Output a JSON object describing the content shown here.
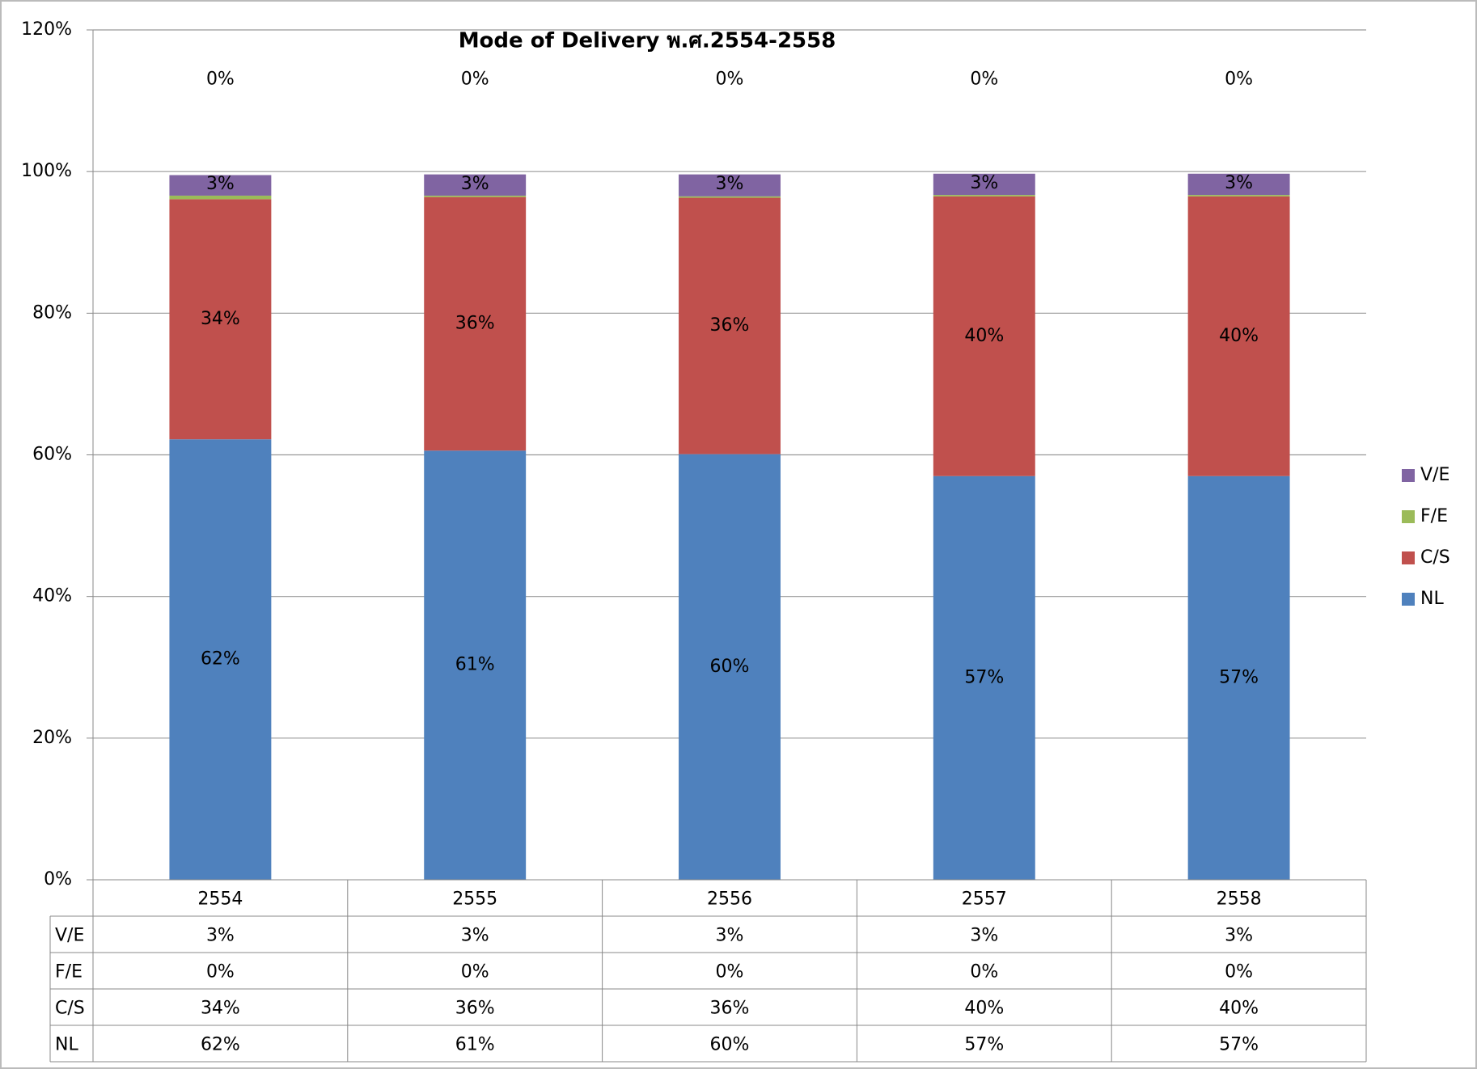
{
  "chart_data": {
    "type": "bar",
    "stacked": true,
    "title": "Mode of Delivery  พ.ศ.2554-2558",
    "categories": [
      "2554",
      "2555",
      "2556",
      "2557",
      "2558"
    ],
    "series": [
      {
        "name": "NL",
        "color": "#4f81bd",
        "values": [
          62.2,
          60.6,
          60.1,
          57.0,
          57.0
        ],
        "value_labels": [
          "62%",
          "61%",
          "60%",
          "57%",
          "57%"
        ]
      },
      {
        "name": "C/S",
        "color": "#c0504d",
        "values": [
          33.9,
          35.8,
          36.2,
          39.5,
          39.5
        ],
        "value_labels": [
          "34%",
          "36%",
          "36%",
          "40%",
          "40%"
        ]
      },
      {
        "name": "F/E",
        "color": "#9bbb59",
        "values": [
          0.5,
          0.2,
          0.2,
          0.2,
          0.2
        ],
        "value_labels": [
          "0%",
          "0%",
          "0%",
          "0%",
          "0%"
        ]
      },
      {
        "name": "V/E",
        "color": "#8064a2",
        "values": [
          2.9,
          3.0,
          3.1,
          3.0,
          3.0
        ],
        "value_labels": [
          "3%",
          "3%",
          "3%",
          "3%",
          "3%"
        ]
      }
    ],
    "ylim": [
      0,
      120
    ],
    "yticks": [
      {
        "value": 0,
        "label": "0%"
      },
      {
        "value": 20,
        "label": "20%"
      },
      {
        "value": 40,
        "label": "40%"
      },
      {
        "value": 60,
        "label": "60%"
      },
      {
        "value": 80,
        "label": "80%"
      },
      {
        "value": 100,
        "label": "100%"
      },
      {
        "value": 120,
        "label": "120%"
      }
    ],
    "grid": true,
    "legend": "right",
    "data_table": true
  }
}
